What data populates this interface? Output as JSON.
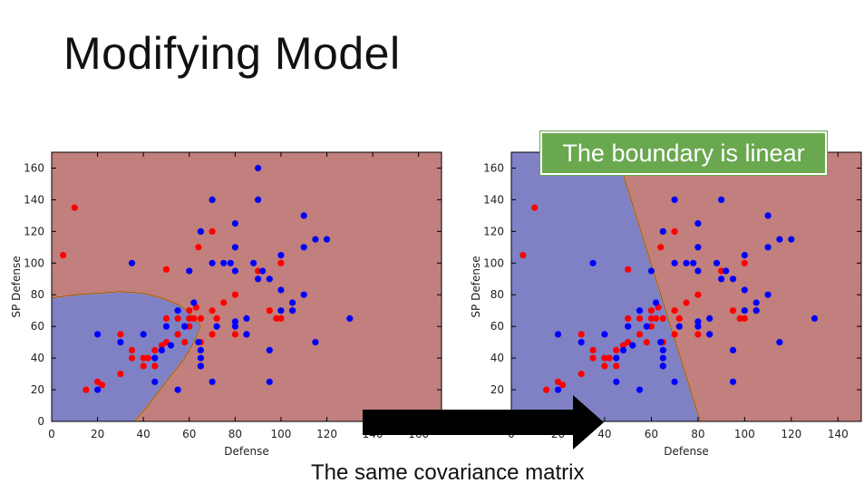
{
  "slide": {
    "title": "Modifying Model",
    "callout": "The boundary is linear",
    "caption": "The same covariance matrix"
  },
  "colors": {
    "region_class1": "#c17f7d",
    "region_class2": "#7f81c4",
    "point_red": "#ff0000",
    "point_blue": "#0000ff",
    "callout_bg": "#6aa84f"
  },
  "chart_data": [
    {
      "type": "scatter",
      "xlabel": "Defense",
      "ylabel": "SP Defense",
      "xlim": [
        0,
        170
      ],
      "ylim": [
        0,
        170
      ],
      "xticks": [
        0,
        20,
        40,
        60,
        80,
        100,
        120,
        140,
        160
      ],
      "yticks": [
        0,
        20,
        40,
        60,
        80,
        100,
        120,
        140,
        160
      ],
      "boundary": "quadratic",
      "boundary_points": [
        [
          0,
          78
        ],
        [
          10,
          80
        ],
        [
          20,
          81
        ],
        [
          30,
          82
        ],
        [
          40,
          81
        ],
        [
          48,
          78
        ],
        [
          55,
          74
        ],
        [
          60,
          69
        ],
        [
          65,
          60
        ],
        [
          62,
          50
        ],
        [
          58,
          40
        ],
        [
          50,
          25
        ],
        [
          42,
          10
        ],
        [
          36,
          0
        ]
      ],
      "series": [
        {
          "values": [
            [
              5,
              105
            ],
            [
              10,
              135
            ],
            [
              15,
              20
            ],
            [
              20,
              25
            ],
            [
              22,
              23
            ],
            [
              30,
              30
            ],
            [
              30,
              55
            ],
            [
              35,
              45
            ],
            [
              35,
              40
            ],
            [
              40,
              35
            ],
            [
              40,
              40
            ],
            [
              42,
              40
            ],
            [
              45,
              45
            ],
            [
              45,
              35
            ],
            [
              48,
              48
            ],
            [
              50,
              50
            ],
            [
              50,
              65
            ],
            [
              50,
              96
            ],
            [
              55,
              65
            ],
            [
              55,
              55
            ],
            [
              58,
              50
            ],
            [
              60,
              60
            ],
            [
              60,
              65
            ],
            [
              60,
              70
            ],
            [
              62,
              65
            ],
            [
              63,
              72
            ],
            [
              64,
              110
            ],
            [
              65,
              120
            ],
            [
              65,
              65
            ],
            [
              65,
              50
            ],
            [
              65,
              35
            ],
            [
              70,
              55
            ],
            [
              70,
              70
            ],
            [
              70,
              120
            ],
            [
              72,
              65
            ],
            [
              75,
              75
            ],
            [
              80,
              80
            ],
            [
              80,
              55
            ],
            [
              85,
              55
            ],
            [
              90,
              95
            ],
            [
              95,
              70
            ],
            [
              98,
              65
            ],
            [
              100,
              100
            ],
            [
              100,
              65
            ],
            [
              105,
              70
            ]
          ]
        },
        {
          "values": [
            [
              20,
              20
            ],
            [
              20,
              55
            ],
            [
              30,
              50
            ],
            [
              35,
              100
            ],
            [
              40,
              55
            ],
            [
              45,
              40
            ],
            [
              45,
              25
            ],
            [
              48,
              45
            ],
            [
              50,
              60
            ],
            [
              52,
              48
            ],
            [
              55,
              70
            ],
            [
              55,
              20
            ],
            [
              58,
              60
            ],
            [
              60,
              95
            ],
            [
              62,
              75
            ],
            [
              64,
              50
            ],
            [
              65,
              120
            ],
            [
              65,
              45
            ],
            [
              65,
              40
            ],
            [
              65,
              35
            ],
            [
              70,
              100
            ],
            [
              70,
              140
            ],
            [
              70,
              25
            ],
            [
              72,
              60
            ],
            [
              75,
              100
            ],
            [
              78,
              100
            ],
            [
              80,
              125
            ],
            [
              80,
              95
            ],
            [
              80,
              110
            ],
            [
              80,
              63
            ],
            [
              80,
              60
            ],
            [
              85,
              65
            ],
            [
              85,
              55
            ],
            [
              88,
              100
            ],
            [
              90,
              160
            ],
            [
              90,
              140
            ],
            [
              90,
              90
            ],
            [
              92,
              95
            ],
            [
              95,
              90
            ],
            [
              95,
              45
            ],
            [
              95,
              25
            ],
            [
              100,
              105
            ],
            [
              100,
              83
            ],
            [
              100,
              70
            ],
            [
              105,
              75
            ],
            [
              105,
              70
            ],
            [
              110,
              130
            ],
            [
              110,
              80
            ],
            [
              110,
              110
            ],
            [
              115,
              115
            ],
            [
              115,
              50
            ],
            [
              120,
              115
            ],
            [
              130,
              65
            ]
          ]
        }
      ]
    },
    {
      "type": "scatter",
      "xlabel": "Defense",
      "ylabel": "SP Defense",
      "xlim": [
        0,
        150
      ],
      "ylim": [
        0,
        170
      ],
      "xticks": [
        0,
        20,
        40,
        60,
        80,
        100,
        120,
        140
      ],
      "yticks": [
        20,
        40,
        60,
        80,
        100,
        120,
        140,
        160
      ],
      "boundary": "linear",
      "boundary_points": [
        [
          45,
          170
        ],
        [
          81,
          0
        ]
      ],
      "series": [
        {
          "values": [
            [
              5,
              105
            ],
            [
              10,
              135
            ],
            [
              15,
              20
            ],
            [
              20,
              25
            ],
            [
              22,
              23
            ],
            [
              30,
              30
            ],
            [
              30,
              55
            ],
            [
              35,
              45
            ],
            [
              35,
              40
            ],
            [
              40,
              35
            ],
            [
              40,
              40
            ],
            [
              42,
              40
            ],
            [
              45,
              45
            ],
            [
              45,
              35
            ],
            [
              48,
              48
            ],
            [
              50,
              50
            ],
            [
              50,
              65
            ],
            [
              50,
              96
            ],
            [
              55,
              65
            ],
            [
              55,
              55
            ],
            [
              58,
              50
            ],
            [
              60,
              60
            ],
            [
              60,
              65
            ],
            [
              60,
              70
            ],
            [
              62,
              65
            ],
            [
              63,
              72
            ],
            [
              64,
              110
            ],
            [
              65,
              120
            ],
            [
              65,
              65
            ],
            [
              65,
              50
            ],
            [
              65,
              35
            ],
            [
              70,
              55
            ],
            [
              70,
              70
            ],
            [
              70,
              120
            ],
            [
              72,
              65
            ],
            [
              75,
              75
            ],
            [
              80,
              80
            ],
            [
              80,
              55
            ],
            [
              85,
              55
            ],
            [
              90,
              95
            ],
            [
              95,
              70
            ],
            [
              98,
              65
            ],
            [
              100,
              100
            ],
            [
              100,
              65
            ],
            [
              105,
              70
            ]
          ]
        },
        {
          "values": [
            [
              20,
              20
            ],
            [
              20,
              55
            ],
            [
              30,
              50
            ],
            [
              35,
              100
            ],
            [
              40,
              55
            ],
            [
              45,
              40
            ],
            [
              45,
              25
            ],
            [
              48,
              45
            ],
            [
              50,
              60
            ],
            [
              52,
              48
            ],
            [
              55,
              70
            ],
            [
              55,
              20
            ],
            [
              58,
              60
            ],
            [
              60,
              95
            ],
            [
              62,
              75
            ],
            [
              64,
              50
            ],
            [
              65,
              120
            ],
            [
              65,
              45
            ],
            [
              65,
              40
            ],
            [
              65,
              35
            ],
            [
              70,
              100
            ],
            [
              70,
              140
            ],
            [
              70,
              25
            ],
            [
              72,
              60
            ],
            [
              75,
              100
            ],
            [
              78,
              100
            ],
            [
              80,
              125
            ],
            [
              80,
              95
            ],
            [
              80,
              110
            ],
            [
              80,
              63
            ],
            [
              80,
              60
            ],
            [
              85,
              65
            ],
            [
              85,
              55
            ],
            [
              88,
              100
            ],
            [
              90,
              160
            ],
            [
              90,
              140
            ],
            [
              90,
              90
            ],
            [
              92,
              95
            ],
            [
              95,
              90
            ],
            [
              95,
              45
            ],
            [
              95,
              25
            ],
            [
              100,
              105
            ],
            [
              100,
              83
            ],
            [
              100,
              70
            ],
            [
              105,
              75
            ],
            [
              105,
              70
            ],
            [
              110,
              130
            ],
            [
              110,
              80
            ],
            [
              110,
              110
            ],
            [
              115,
              115
            ],
            [
              115,
              50
            ],
            [
              120,
              115
            ],
            [
              130,
              65
            ]
          ]
        }
      ]
    }
  ]
}
